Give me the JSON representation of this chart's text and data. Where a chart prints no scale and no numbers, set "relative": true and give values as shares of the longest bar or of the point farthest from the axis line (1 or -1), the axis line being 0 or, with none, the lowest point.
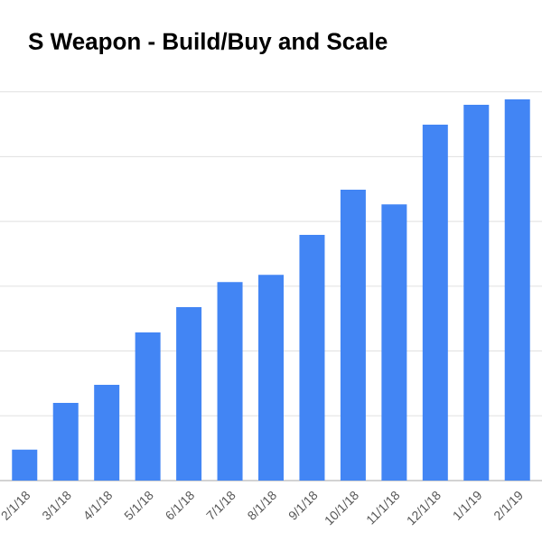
{
  "chart_data": {
    "type": "bar",
    "title": "S Weapon - Build/Buy and Scale",
    "categories": [
      "2/1/18",
      "3/1/18",
      "4/1/18",
      "5/1/18",
      "6/1/18",
      "7/1/18",
      "8/1/18",
      "9/1/18",
      "10/1/18",
      "11/1/18",
      "12/1/18",
      "1/1/19",
      "2/1/19"
    ],
    "values": [
      0.081,
      0.204,
      0.251,
      0.389,
      0.455,
      0.521,
      0.54,
      0.645,
      0.763,
      0.725,
      0.934,
      0.986,
      1
    ],
    "color": "#4285f4",
    "relative": true,
    "grid": "y"
  }
}
